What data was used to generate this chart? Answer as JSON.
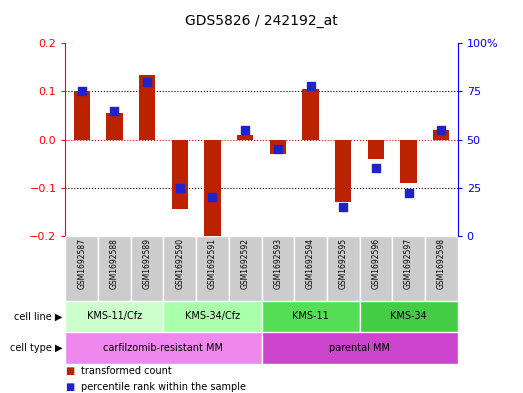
{
  "title": "GDS5826 / 242192_at",
  "samples": [
    "GSM1692587",
    "GSM1692588",
    "GSM1692589",
    "GSM1692590",
    "GSM1692591",
    "GSM1692592",
    "GSM1692593",
    "GSM1692594",
    "GSM1692595",
    "GSM1692596",
    "GSM1692597",
    "GSM1692598"
  ],
  "transformed_count": [
    0.1,
    0.055,
    0.135,
    -0.145,
    -0.2,
    0.01,
    -0.03,
    0.105,
    -0.13,
    -0.04,
    -0.09,
    0.02
  ],
  "percentile_rank": [
    75,
    65,
    80,
    25,
    20,
    55,
    45,
    78,
    15,
    35,
    22,
    55
  ],
  "ylim_left": [
    -0.2,
    0.2
  ],
  "ylim_right": [
    0,
    100
  ],
  "yticks_left": [
    -0.2,
    -0.1,
    0.0,
    0.1,
    0.2
  ],
  "yticks_right": [
    0,
    25,
    50,
    75,
    100
  ],
  "ytick_labels_right": [
    "0",
    "25",
    "50",
    "75",
    "100%"
  ],
  "hlines": [
    -0.1,
    0.0,
    0.1
  ],
  "bar_color": "#bb2200",
  "dot_color": "#2222cc",
  "cell_line_groups": [
    {
      "label": "KMS-11/Cfz",
      "start": 0,
      "end": 2,
      "color": "#ccffcc"
    },
    {
      "label": "KMS-34/Cfz",
      "start": 3,
      "end": 5,
      "color": "#aaffaa"
    },
    {
      "label": "KMS-11",
      "start": 6,
      "end": 8,
      "color": "#55dd55"
    },
    {
      "label": "KMS-34",
      "start": 9,
      "end": 11,
      "color": "#44cc44"
    }
  ],
  "cell_type_groups": [
    {
      "label": "carfilzomib-resistant MM",
      "start": 0,
      "end": 5,
      "color": "#ee88ee"
    },
    {
      "label": "parental MM",
      "start": 6,
      "end": 11,
      "color": "#cc44cc"
    }
  ],
  "cell_line_label": "cell line",
  "cell_type_label": "cell type",
  "legend_bar": "transformed count",
  "legend_dot": "percentile rank within the sample",
  "bar_width": 0.5,
  "dot_size": 30,
  "gsm_bg": "#cccccc",
  "gsm_border": "#ffffff"
}
